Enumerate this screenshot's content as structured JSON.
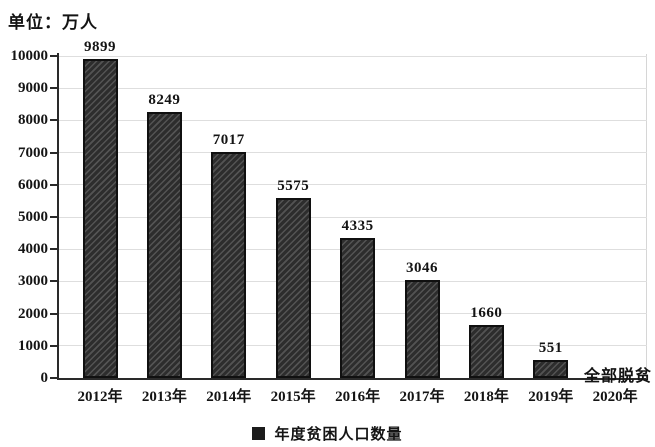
{
  "chart": {
    "unit_label": "单位：万人",
    "legend_label": "年度贫困人口数量",
    "annotation": "全部脱贫"
  },
  "chart_data": {
    "type": "bar",
    "title": "",
    "unit_label": "单位：万人",
    "categories": [
      "2012年",
      "2013年",
      "2014年",
      "2015年",
      "2016年",
      "2017年",
      "2018年",
      "2019年",
      "2020年"
    ],
    "values": [
      9899,
      8249,
      7017,
      5575,
      4335,
      3046,
      1660,
      551,
      0
    ],
    "bar_labels": [
      "9899",
      "8249",
      "7017",
      "5575",
      "4335",
      "3046",
      "1660",
      "551",
      ""
    ],
    "legend": [
      "年度贫困人口数量"
    ],
    "legend_position": "bottom-center",
    "annotation": {
      "text": "全部脱贫",
      "category": "2020年",
      "value": 0
    },
    "xlabel": "",
    "ylabel": "单位：万人",
    "ylim": [
      0,
      10000
    ],
    "ytick_step": 1000,
    "yticks": [
      0,
      1000,
      2000,
      3000,
      4000,
      5000,
      6000,
      7000,
      8000,
      9000,
      10000
    ],
    "grid": "horizontal",
    "bar_style": "diagonal-hatch",
    "colors": {
      "bar_fill": "#2d2d2d",
      "bar_stripe": "#535353",
      "bar_border": "#101010",
      "gridline": "#dedede",
      "axis": "#2a2a2a",
      "text": "#141414",
      "background": "#ffffff"
    }
  }
}
